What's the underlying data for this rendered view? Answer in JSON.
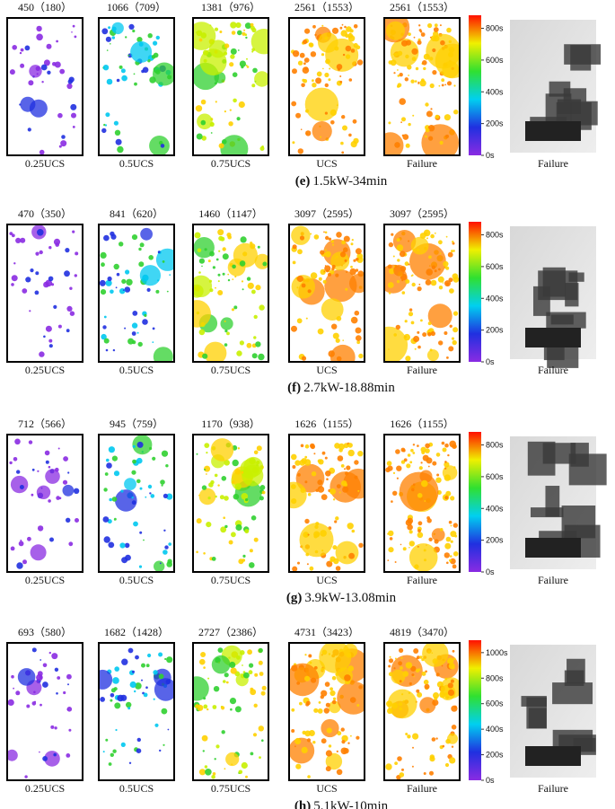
{
  "rows": [
    {
      "counts": [
        "450（180）",
        "1066（709）",
        "1381（976）",
        "2561（1553）",
        "2561（1553）"
      ],
      "stages": [
        "0.25UCS",
        "0.5UCS",
        "0.75UCS",
        "UCS",
        "Failure"
      ],
      "colorbar_ticks": [
        "0s",
        "200s",
        "400s",
        "600s",
        "800s"
      ],
      "photo_label": "Failure",
      "caption_label": "(e)",
      "caption": "1.5kW-34min"
    },
    {
      "counts": [
        "470（350）",
        "841（620）",
        "1460（1147）",
        "3097（2595）",
        "3097（2595）"
      ],
      "stages": [
        "0.25UCS",
        "0.5UCS",
        "0.75UCS",
        "UCS",
        "Failure"
      ],
      "colorbar_ticks": [
        "0s",
        "200s",
        "400s",
        "600s",
        "800s"
      ],
      "photo_label": "Failure",
      "caption_label": "(f)",
      "caption": "2.7kW-18.88min"
    },
    {
      "counts": [
        "712（566）",
        "945（759）",
        "1170（938）",
        "1626（1155）",
        "1626（1155）"
      ],
      "stages": [
        "0.25UCS",
        "0.5UCS",
        "0.75UCS",
        "UCS",
        "Failure"
      ],
      "colorbar_ticks": [
        "0s",
        "200s",
        "400s",
        "600s",
        "800s"
      ],
      "photo_label": "Failure",
      "caption_label": "(g)",
      "caption": "3.9kW-13.08min"
    },
    {
      "counts": [
        "693（580）",
        "1682（1428）",
        "2727（2386）",
        "4731（3423）",
        "4819（3470）"
      ],
      "stages": [
        "0.25UCS",
        "0.5UCS",
        "0.75UCS",
        "UCS",
        "Failure"
      ],
      "colorbar_ticks": [
        "0s",
        "200s",
        "400s",
        "600s",
        "800s",
        "1000s"
      ],
      "photo_label": "Failure",
      "caption_label": "(h)",
      "caption": "5.1kW-10min"
    }
  ]
}
